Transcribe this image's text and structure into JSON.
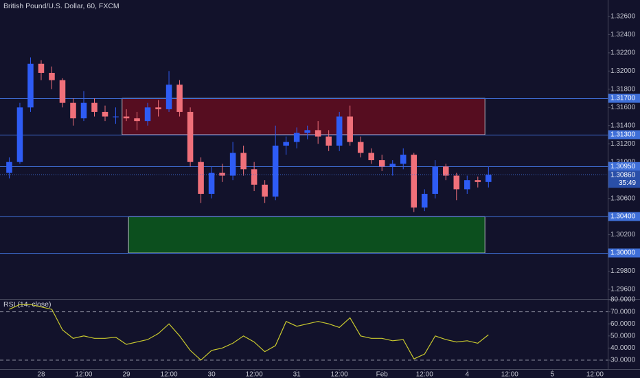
{
  "chart_data": [
    {
      "type": "candlestick",
      "title": "British Pound/U.S. Dollar, 60, FXCM",
      "x": [
        -9,
        -6,
        -3,
        0,
        3,
        6,
        9,
        12,
        15,
        18,
        21,
        24,
        27,
        30,
        33,
        36,
        39,
        42,
        45,
        48,
        51,
        54,
        57,
        60,
        63,
        66,
        69,
        72,
        75,
        78,
        81,
        84,
        87,
        90,
        93,
        96,
        99,
        102,
        105,
        108,
        111,
        114,
        117,
        120,
        123,
        126
      ],
      "open": [
        1.3088,
        1.31,
        1.316,
        1.3208,
        1.3198,
        1.319,
        1.3165,
        1.3148,
        1.3165,
        1.3155,
        1.315,
        1.315,
        1.3148,
        1.3145,
        1.316,
        1.3158,
        1.3185,
        1.3155,
        1.31,
        1.3065,
        1.3088,
        1.3085,
        1.311,
        1.3092,
        1.3075,
        1.3062,
        1.3118,
        1.3122,
        1.3132,
        1.3135,
        1.3128,
        1.3118,
        1.315,
        1.3122,
        1.311,
        1.3102,
        1.3095,
        1.3098,
        1.3108,
        1.305,
        1.3065,
        1.3095,
        1.3085,
        1.307,
        1.308,
        1.3078
      ],
      "high": [
        1.3105,
        1.3165,
        1.3215,
        1.3212,
        1.3205,
        1.3192,
        1.317,
        1.3178,
        1.317,
        1.3162,
        1.316,
        1.3158,
        1.3155,
        1.3165,
        1.3168,
        1.32,
        1.319,
        1.316,
        1.3105,
        1.3095,
        1.3098,
        1.3122,
        1.3118,
        1.31,
        1.308,
        1.314,
        1.3128,
        1.3138,
        1.314,
        1.3145,
        1.3135,
        1.3155,
        1.3162,
        1.3128,
        1.3115,
        1.3108,
        1.3102,
        1.3115,
        1.311,
        1.307,
        1.3102,
        1.3098,
        1.3088,
        1.3085,
        1.3084,
        1.3095
      ],
      "low": [
        1.3082,
        1.3098,
        1.3155,
        1.319,
        1.318,
        1.316,
        1.314,
        1.3145,
        1.315,
        1.3145,
        1.3142,
        1.3145,
        1.3135,
        1.314,
        1.315,
        1.3155,
        1.315,
        1.3095,
        1.3055,
        1.306,
        1.3078,
        1.308,
        1.3085,
        1.3068,
        1.3055,
        1.3058,
        1.3108,
        1.3115,
        1.3125,
        1.312,
        1.3112,
        1.3112,
        1.3118,
        1.3105,
        1.3098,
        1.309,
        1.3085,
        1.3092,
        1.3045,
        1.3046,
        1.306,
        1.308,
        1.3058,
        1.3065,
        1.3072,
        1.3072
      ],
      "close": [
        1.31,
        1.316,
        1.3208,
        1.3198,
        1.319,
        1.3165,
        1.3148,
        1.3165,
        1.3155,
        1.315,
        1.315,
        1.3148,
        1.3145,
        1.316,
        1.3158,
        1.3185,
        1.3155,
        1.31,
        1.3065,
        1.3088,
        1.3085,
        1.311,
        1.3092,
        1.3075,
        1.3062,
        1.3118,
        1.3122,
        1.3132,
        1.3135,
        1.3128,
        1.3118,
        1.315,
        1.3122,
        1.311,
        1.3102,
        1.3095,
        1.3098,
        1.3108,
        1.305,
        1.3065,
        1.3095,
        1.3085,
        1.307,
        1.308,
        1.3078,
        1.3086
      ],
      "up_color": "#2e5cf5",
      "down_color": "#f0707a",
      "xlim": [
        -11.6,
        159.6
      ],
      "ylim": [
        1.29494,
        1.32781
      ],
      "yticks": [
        {
          "value": 1.326,
          "label": "1.32600"
        },
        {
          "value": 1.324,
          "label": "1.32400"
        },
        {
          "value": 1.322,
          "label": "1.32200"
        },
        {
          "value": 1.32,
          "label": "1.32000"
        },
        {
          "value": 1.318,
          "label": "1.31800"
        },
        {
          "value": 1.316,
          "label": "1.31600"
        },
        {
          "value": 1.314,
          "label": "1.31400"
        },
        {
          "value": 1.312,
          "label": "1.31200"
        },
        {
          "value": 1.31,
          "label": "1.31000"
        },
        {
          "value": 1.306,
          "label": "1.30600"
        },
        {
          "value": 1.302,
          "label": "1.30200"
        },
        {
          "value": 1.298,
          "label": "1.29800"
        },
        {
          "value": 1.296,
          "label": "1.29600"
        }
      ],
      "levels": [
        {
          "value": 1.317,
          "label": "1.31700"
        },
        {
          "value": 1.313,
          "label": "1.31300"
        },
        {
          "value": 1.3095,
          "label": "1.30950"
        },
        {
          "value": 1.304,
          "label": "1.30400"
        },
        {
          "value": 1.3,
          "label": "1.30000"
        }
      ],
      "level_color": "#3f6fd8",
      "zones": [
        {
          "low": 1.313,
          "high": 1.317,
          "start": 22.8,
          "end": 125,
          "color": "#560d20"
        },
        {
          "low": 1.3,
          "high": 1.304,
          "start": 24.6,
          "end": 125,
          "color": "#0c4f1e"
        }
      ],
      "last": {
        "value": 1.3086,
        "label": "1.30860",
        "countdown": "35:49"
      }
    },
    {
      "type": "line",
      "title": "RSI (14, close)",
      "x": [
        -9,
        -6,
        -3,
        0,
        3,
        6,
        9,
        12,
        15,
        18,
        21,
        24,
        27,
        30,
        33,
        36,
        39,
        42,
        45,
        48,
        51,
        54,
        57,
        60,
        63,
        66,
        69,
        72,
        75,
        78,
        81,
        84,
        87,
        90,
        93,
        96,
        99,
        102,
        105,
        108,
        111,
        114,
        117,
        120,
        123,
        126
      ],
      "values": [
        72,
        76,
        76,
        74,
        72,
        55,
        48,
        50,
        48,
        48,
        49,
        43,
        45,
        47,
        52,
        60,
        50,
        38,
        30,
        38,
        40,
        44,
        50,
        45,
        37,
        42,
        62,
        58,
        60,
        62,
        60,
        57,
        65,
        50,
        48,
        48,
        46,
        47,
        31,
        35,
        50,
        47,
        45,
        46,
        44,
        51
      ],
      "color": "#c9c92e",
      "bands": [
        30,
        70
      ],
      "xlim": [
        -11.6,
        159.6
      ],
      "ylim": [
        22.6,
        80.6
      ],
      "yticks": [
        {
          "value": 80,
          "label": "80.0000"
        },
        {
          "value": 70,
          "label": "70.0000"
        },
        {
          "value": 60,
          "label": "60.0000"
        },
        {
          "value": 50,
          "label": "50.0000"
        },
        {
          "value": 40,
          "label": "40.0000"
        },
        {
          "value": 30,
          "label": "30.0000"
        }
      ],
      "xticks": [
        {
          "value": 0,
          "label": "28"
        },
        {
          "value": 12,
          "label": "12:00"
        },
        {
          "value": 24,
          "label": "29"
        },
        {
          "value": 36,
          "label": "12:00"
        },
        {
          "value": 48,
          "label": "30"
        },
        {
          "value": 60,
          "label": "12:00"
        },
        {
          "value": 72,
          "label": "31"
        },
        {
          "value": 84,
          "label": "12:00"
        },
        {
          "value": 96,
          "label": "Feb"
        },
        {
          "value": 108,
          "label": "12:00"
        },
        {
          "value": 120,
          "label": "4"
        },
        {
          "value": 132,
          "label": "12:00"
        },
        {
          "value": 144,
          "label": "5"
        },
        {
          "value": 156,
          "label": "12:00"
        }
      ]
    }
  ]
}
